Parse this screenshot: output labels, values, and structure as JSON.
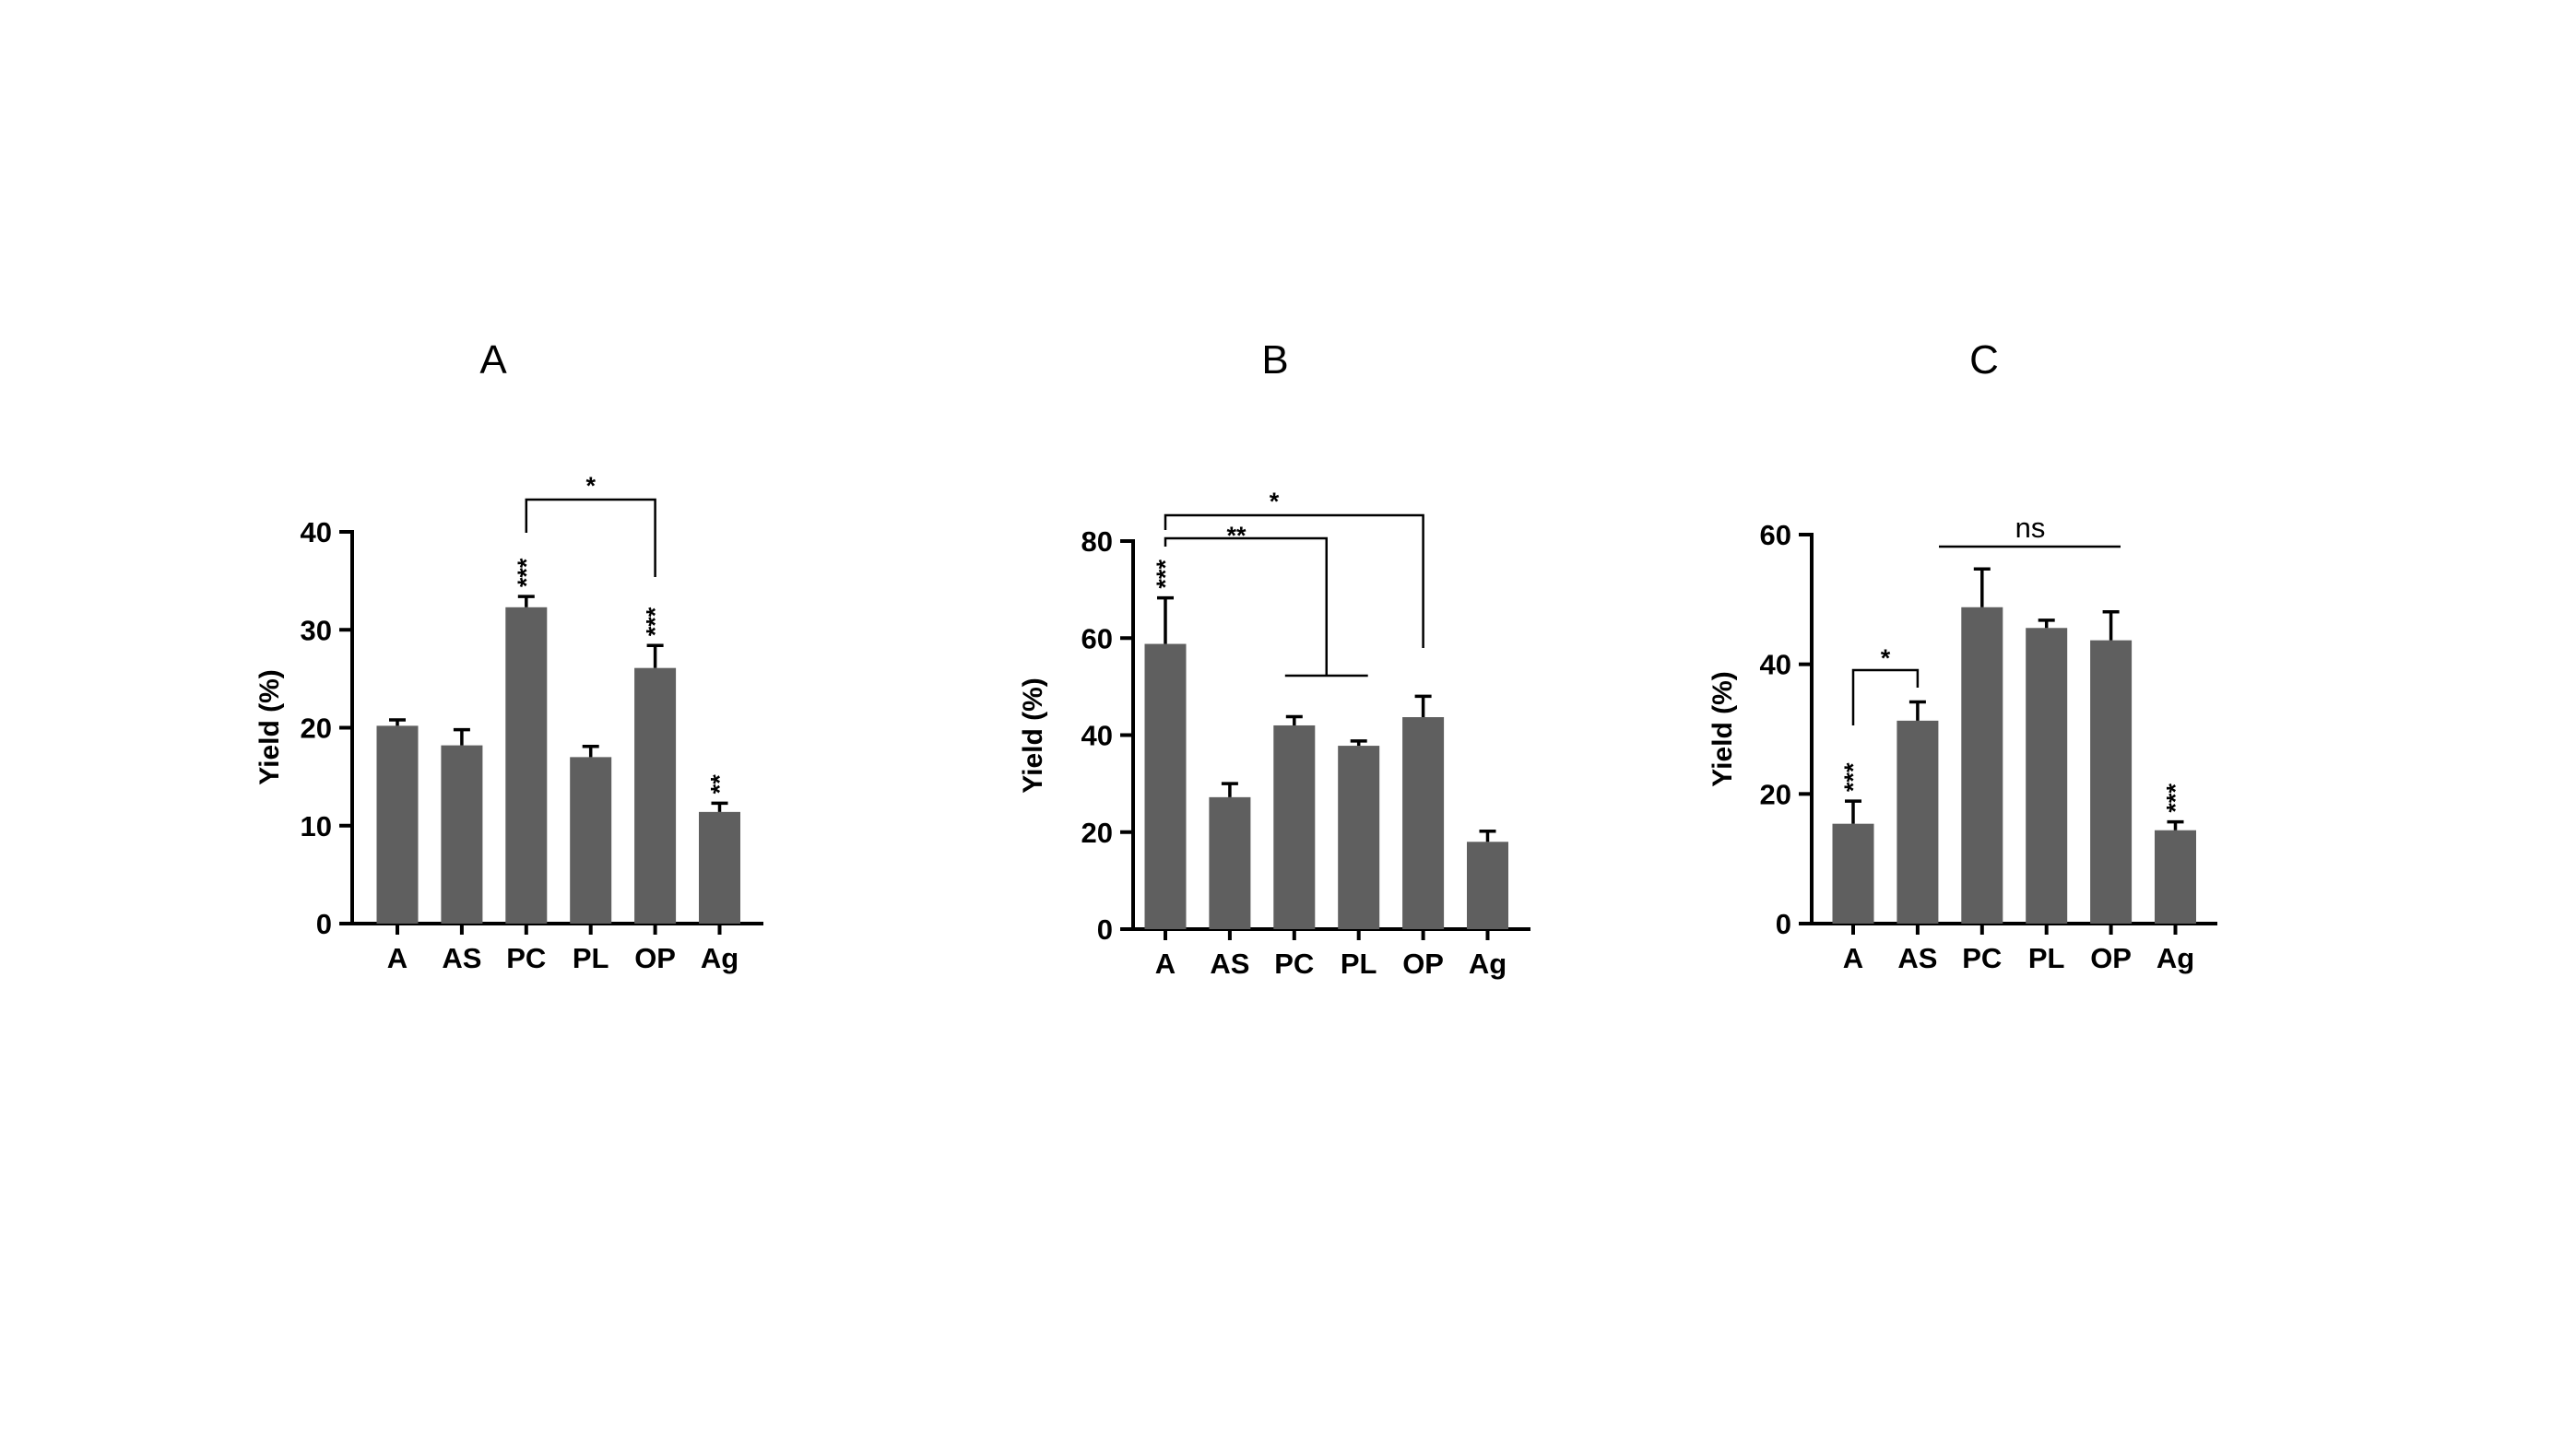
{
  "chart_data": [
    {
      "type": "bar",
      "title": "A",
      "ylabel": "Yield (%)",
      "xlabel": "",
      "categories": [
        "A",
        "AS",
        "PC",
        "PL",
        "OP",
        "Ag"
      ],
      "values": [
        20.2,
        18.2,
        32.3,
        17.0,
        26.1,
        11.4
      ],
      "errors": [
        0.6,
        1.6,
        1.1,
        1.1,
        2.3,
        0.9
      ],
      "ylim": [
        0,
        40
      ],
      "yticks": [
        "0",
        "10",
        "20",
        "30",
        "40"
      ],
      "bar_color": "#5f5f5f",
      "bar_annotations": [
        "",
        "",
        "***",
        "",
        "***",
        "**"
      ],
      "comparisons": [
        {
          "groups": [
            "PC",
            "OP"
          ],
          "label": "*"
        }
      ]
    },
    {
      "type": "bar",
      "title": "B",
      "ylabel": "Yield (%)",
      "xlabel": "",
      "categories": [
        "A",
        "AS",
        "PC",
        "PL",
        "OP",
        "Ag"
      ],
      "values": [
        58.8,
        27.2,
        42.0,
        37.8,
        43.7,
        18.0
      ],
      "errors": [
        9.5,
        2.8,
        1.8,
        1.0,
        4.3,
        2.2
      ],
      "ylim": [
        0,
        80
      ],
      "yticks": [
        "0",
        "20",
        "40",
        "60",
        "80"
      ],
      "bar_color": "#5f5f5f",
      "bar_annotations": [
        "***",
        "",
        "",
        "",
        "",
        ""
      ],
      "comparisons": [
        {
          "groups": [
            "A",
            "PC-PL"
          ],
          "label": "**"
        },
        {
          "groups": [
            "A",
            "OP"
          ],
          "label": "*"
        }
      ]
    },
    {
      "type": "bar",
      "title": "C",
      "ylabel": "Yield (%)",
      "xlabel": "",
      "categories": [
        "A",
        "AS",
        "PC",
        "PL",
        "OP",
        "Ag"
      ],
      "values": [
        15.4,
        31.3,
        48.8,
        45.6,
        43.7,
        14.4
      ],
      "errors": [
        3.5,
        2.9,
        5.9,
        1.2,
        4.4,
        1.3
      ],
      "ylim": [
        0,
        60
      ],
      "yticks": [
        "0",
        "20",
        "40",
        "60"
      ],
      "bar_color": "#5f5f5f",
      "bar_annotations": [
        "***",
        "",
        "",
        "",
        "",
        "***"
      ],
      "comparisons": [
        {
          "groups": [
            "A",
            "AS"
          ],
          "label": "*"
        },
        {
          "groups": [
            "PC",
            "OP"
          ],
          "label": "ns"
        }
      ]
    }
  ]
}
